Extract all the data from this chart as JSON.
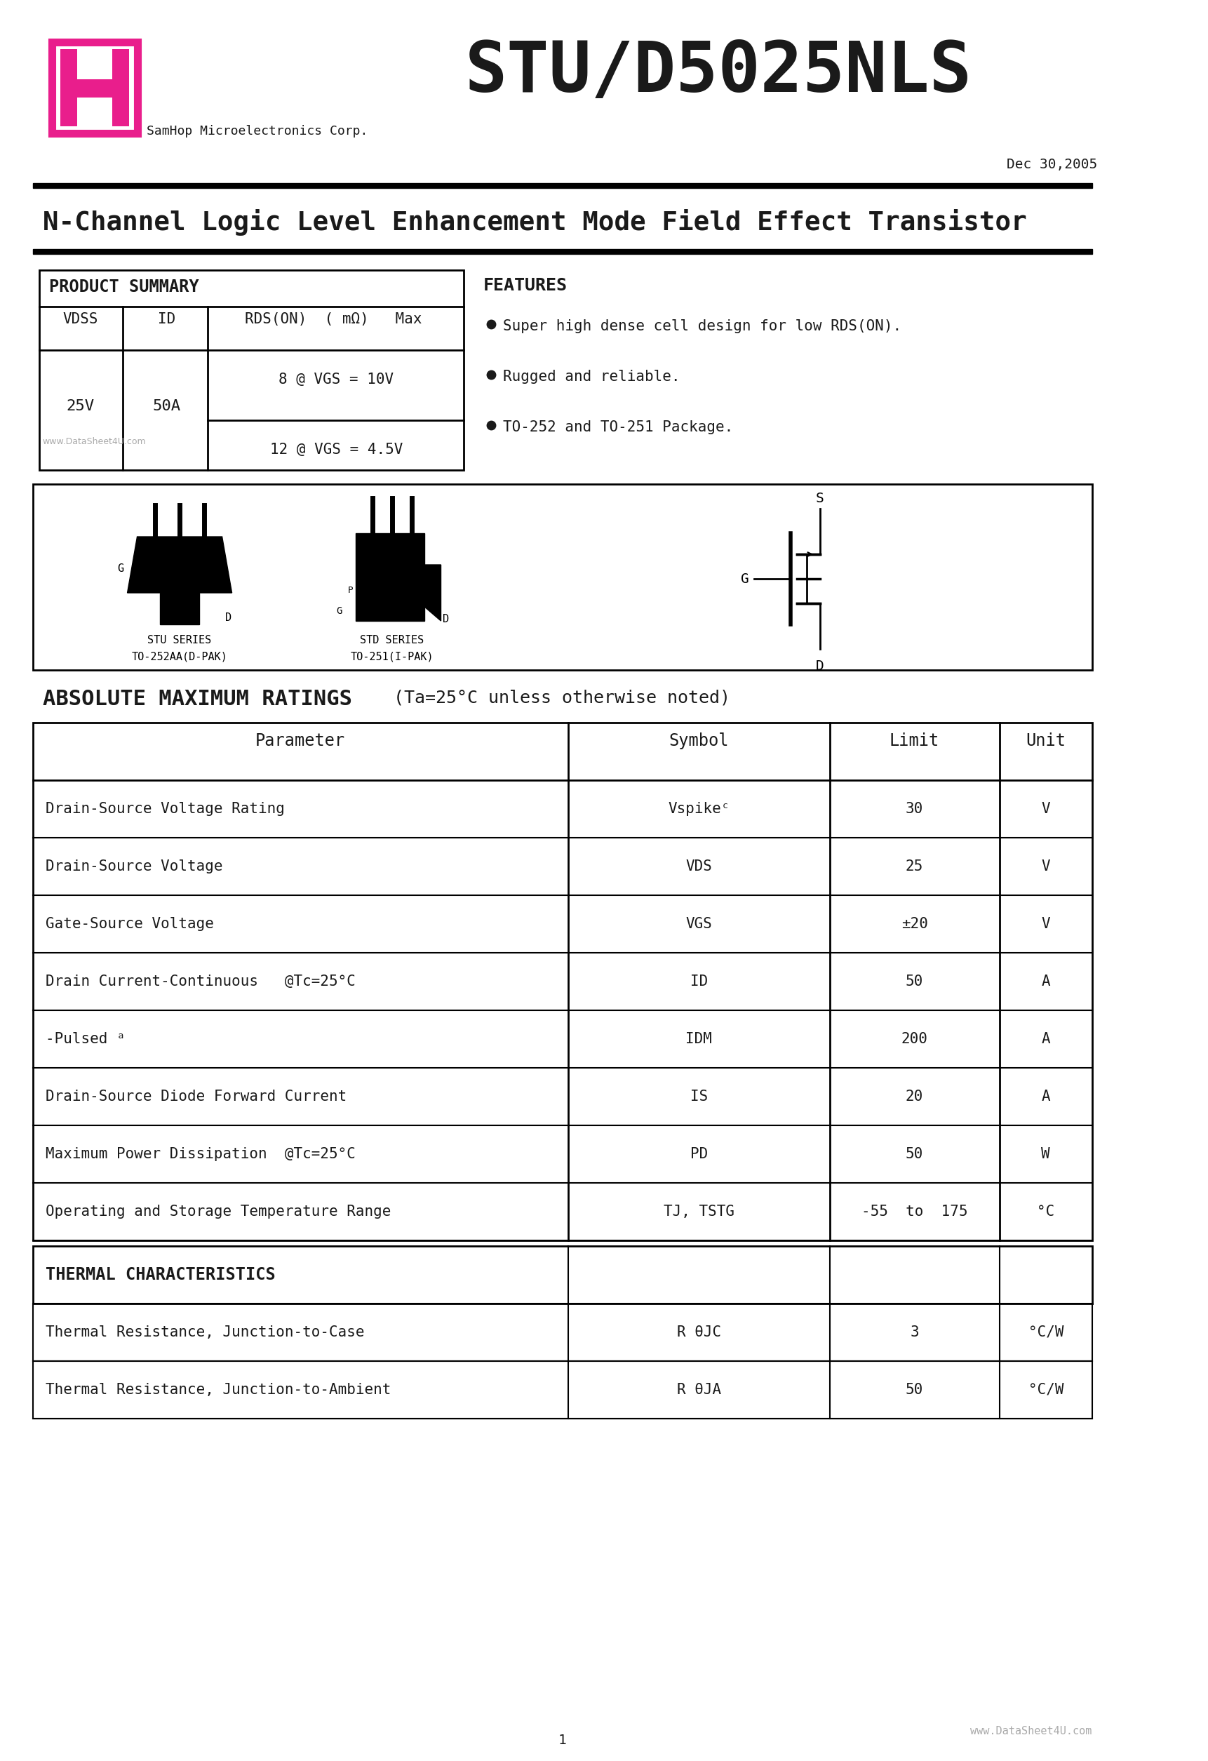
{
  "title": "STU/D5025NLS",
  "company": "SamHop Microelectronics Corp.",
  "date": "Dec 30,2005",
  "subtitle": "N-Channel Logic Level Enhancement Mode Field Effect Transistor",
  "product_summary_header": "PRODUCT SUMMARY",
  "features_title": "FEATURES",
  "features": [
    "Super high dense cell design for low RDS(ON).",
    "Rugged and reliable.",
    "TO-252 and TO-251 Package."
  ],
  "abs_max_title": "ABSOLUTE MAXIMUM RATINGS",
  "abs_max_note": "  (Ta=25°C unless otherwise noted)",
  "abs_max_cols": [
    "Parameter",
    "Symbol",
    "Limit",
    "Unit"
  ],
  "abs_max_data": [
    [
      "Drain-Source Voltage Rating",
      "Vspikeᶜ",
      "30",
      "V"
    ],
    [
      "Drain-Source Voltage",
      "VDS",
      "25",
      "V"
    ],
    [
      "Gate-Source Voltage",
      "VGS",
      "±20",
      "V"
    ],
    [
      "Drain Current-Continuous   @Tc=25°C",
      "ID",
      "50",
      "A"
    ],
    [
      "-Pulsed ᵃ",
      "IDM",
      "200",
      "A"
    ],
    [
      "Drain-Source Diode Forward Current",
      "IS",
      "20",
      "A"
    ],
    [
      "Maximum Power Dissipation  @Tc=25°C",
      "PD",
      "50",
      "W"
    ],
    [
      "Operating and Storage Temperature Range",
      "TJ, TSTG",
      "-55  to  175",
      "°C"
    ]
  ],
  "thermal_title": "THERMAL CHARACTERISTICS",
  "thermal_data": [
    [
      "Thermal Resistance, Junction-to-Case",
      "R θJC",
      "3",
      "°C/W"
    ],
    [
      "Thermal Resistance, Junction-to-Ambient",
      "R θJA",
      "50",
      "°C/W"
    ]
  ],
  "page_num": "1",
  "logo_color": "#E91E8C",
  "bg_color": "#FFFFFF",
  "text_color": "#1a1a1a",
  "line_color": "#000000",
  "table_border_color": "#000000"
}
